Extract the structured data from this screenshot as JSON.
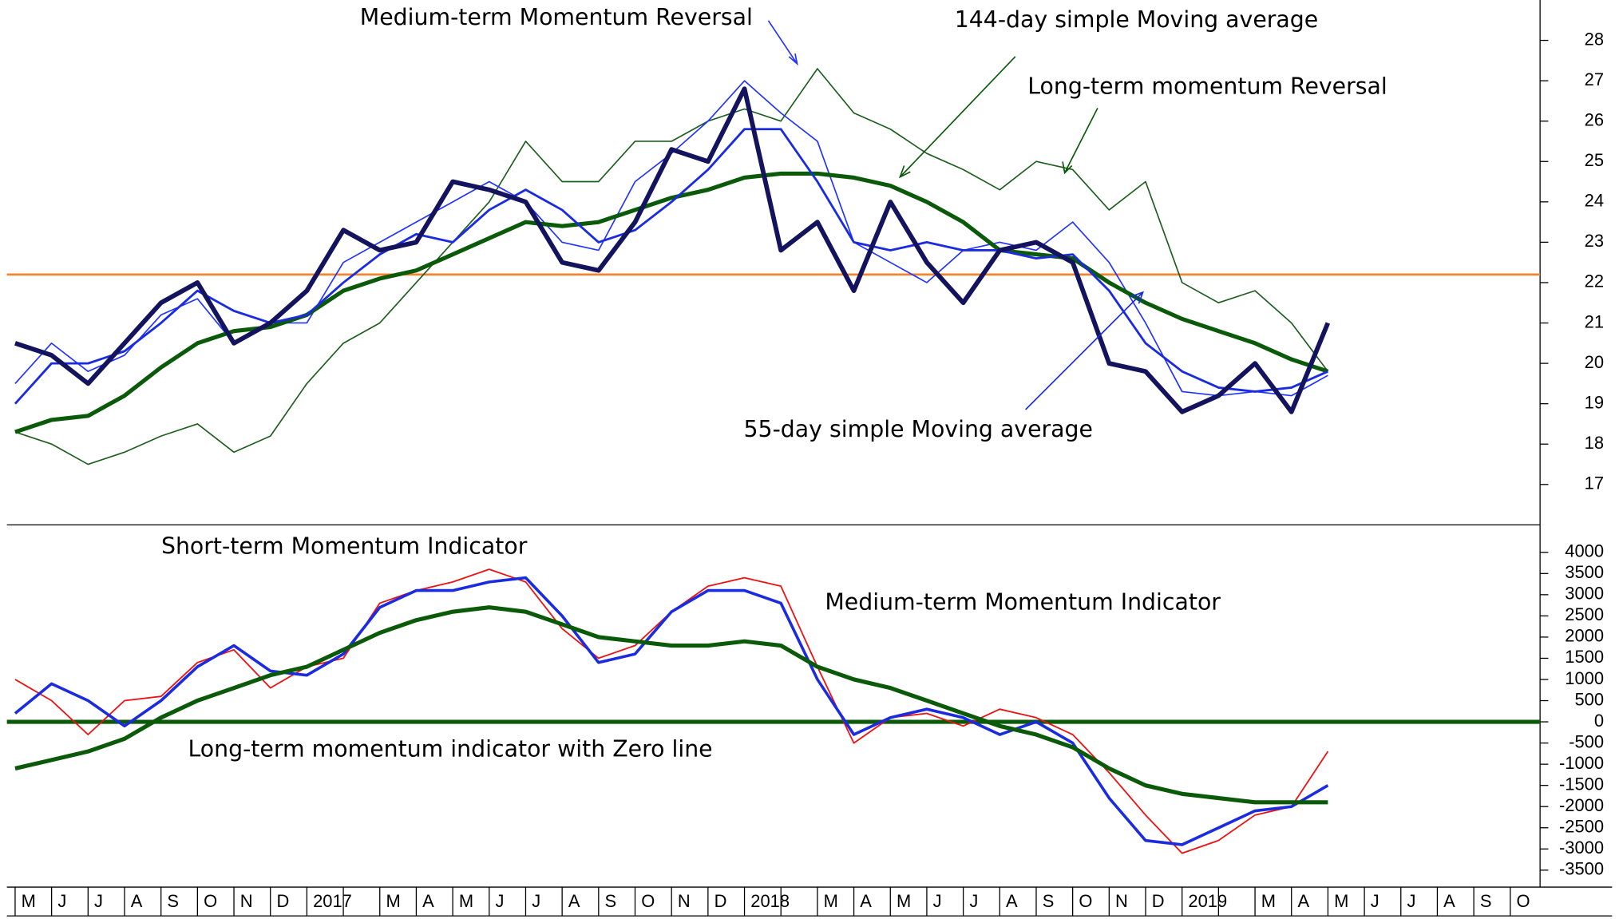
{
  "chart_data": [
    {
      "type": "line",
      "ylim": [
        16,
        29
      ],
      "yticks": [
        17,
        18,
        19,
        20,
        21,
        22,
        23,
        24,
        25,
        26,
        27,
        28
      ],
      "hline": 22.2,
      "hline_color": "#ff7f27",
      "series": [
        {
          "color": "#1e5e1e",
          "name": "Long-term momentum Reversal",
          "values": [
            18.3,
            18.0,
            17.5,
            17.8,
            18.2,
            18.5,
            17.8,
            18.2,
            19.5,
            20.5,
            21.0,
            22.0,
            23.0,
            24.0,
            25.5,
            24.5,
            24.5,
            25.5,
            25.5,
            26.0,
            26.3,
            26.0,
            27.3,
            26.2,
            25.8,
            25.2,
            24.8,
            24.3,
            25.0,
            24.8,
            23.8,
            24.5,
            22.0,
            21.5,
            21.8,
            21.0,
            19.8,
            null,
            null,
            null,
            null,
            null
          ]
        },
        {
          "color": "#2233ff",
          "name": "Medium-term Momentum Reversal",
          "values": [
            19.5,
            20.5,
            19.8,
            20.2,
            21.2,
            21.6,
            20.5,
            21.0,
            21.0,
            22.5,
            23.0,
            23.5,
            24.0,
            24.5,
            24.0,
            23.0,
            22.8,
            24.5,
            25.2,
            26.0,
            27.0,
            26.2,
            25.5,
            23.0,
            22.5,
            22.0,
            22.8,
            23.0,
            22.8,
            23.5,
            22.5,
            21.0,
            19.3,
            19.2,
            19.3,
            19.2,
            19.7,
            null,
            null,
            null,
            null,
            null
          ]
        },
        {
          "color": "#0a5a0a",
          "name": "144-day simple Moving average",
          "values": [
            18.3,
            18.6,
            18.7,
            19.2,
            19.9,
            20.5,
            20.8,
            20.9,
            21.2,
            21.8,
            22.1,
            22.3,
            22.7,
            23.1,
            23.5,
            23.4,
            23.5,
            23.8,
            24.1,
            24.3,
            24.6,
            24.7,
            24.7,
            24.6,
            24.4,
            24.0,
            23.5,
            22.8,
            22.7,
            22.6,
            22.0,
            21.5,
            21.1,
            20.8,
            20.5,
            20.1,
            19.8,
            null,
            null,
            null,
            null,
            null
          ]
        },
        {
          "color": "#1a2be0",
          "name": "55-day simple Moving average",
          "values": [
            19.0,
            20.0,
            20.0,
            20.3,
            21.0,
            21.8,
            21.3,
            21.0,
            21.2,
            22.0,
            22.7,
            23.2,
            23.0,
            23.8,
            24.3,
            23.8,
            23.0,
            23.3,
            24.0,
            24.8,
            25.8,
            25.8,
            24.5,
            23.0,
            22.8,
            23.0,
            22.8,
            22.8,
            22.6,
            22.7,
            21.8,
            20.5,
            19.8,
            19.4,
            19.3,
            19.4,
            19.8,
            null,
            null,
            null,
            null,
            null
          ]
        },
        {
          "color": "#13135e",
          "values": [
            20.5,
            20.2,
            19.5,
            20.5,
            21.5,
            22.0,
            20.5,
            21.0,
            21.8,
            23.3,
            22.8,
            23.0,
            24.5,
            24.3,
            24.0,
            22.5,
            22.3,
            23.5,
            25.3,
            25.0,
            26.8,
            22.8,
            23.5,
            21.8,
            24.0,
            22.5,
            21.5,
            22.8,
            23.0,
            22.5,
            20.0,
            19.8,
            18.8,
            19.2,
            20.0,
            18.8,
            21.0,
            null,
            null,
            null,
            null,
            null
          ]
        }
      ]
    },
    {
      "type": "line",
      "categories": [
        "M",
        "J",
        "J",
        "A",
        "S",
        "O",
        "N",
        "D",
        "2017",
        null,
        "M",
        "A",
        "M",
        "J",
        "J",
        "A",
        "S",
        "O",
        "N",
        "D",
        "2018",
        null,
        "M",
        "A",
        "M",
        "J",
        "J",
        "A",
        "S",
        "O",
        "N",
        "D",
        "2019",
        null,
        "M",
        "A",
        "M",
        "J",
        "J",
        "A",
        "S",
        "O"
      ],
      "ylim": [
        -3900,
        4600
      ],
      "yticks": [
        -3500,
        -3000,
        -2500,
        -2000,
        -1500,
        -1000,
        -500,
        0,
        500,
        1000,
        1500,
        2000,
        2500,
        3000,
        3500,
        4000
      ],
      "zero_line": true,
      "series": [
        {
          "color": "#ee1111",
          "name": "Short-term Momentum Indicator",
          "values": [
            1000,
            500,
            -300,
            500,
            600,
            1400,
            1700,
            800,
            1300,
            1500,
            2800,
            3100,
            3300,
            3600,
            3300,
            2200,
            1500,
            1800,
            2600,
            3200,
            3400,
            3200,
            1300,
            -500,
            100,
            200,
            -100,
            300,
            100,
            -300,
            -1200,
            -2200,
            -3100,
            -2800,
            -2200,
            -2000,
            -700,
            null,
            null,
            null,
            null,
            null
          ]
        },
        {
          "color": "#1a2be0",
          "name": "Medium-term Momentum Indicator",
          "values": [
            200,
            900,
            500,
            -100,
            500,
            1300,
            1800,
            1200,
            1100,
            1600,
            2700,
            3100,
            3100,
            3300,
            3400,
            2500,
            1400,
            1600,
            2600,
            3100,
            3100,
            2800,
            1000,
            -300,
            100,
            300,
            100,
            -300,
            0,
            -500,
            -1800,
            -2800,
            -2900,
            -2500,
            -2100,
            -2000,
            -1500,
            null,
            null,
            null,
            null,
            null
          ]
        },
        {
          "color": "#0a5a0a",
          "name": "Long-term momentum indicator with Zero line",
          "values": [
            -1100,
            -900,
            -700,
            -400,
            100,
            500,
            800,
            1100,
            1300,
            1700,
            2100,
            2400,
            2600,
            2700,
            2600,
            2300,
            2000,
            1900,
            1800,
            1800,
            1900,
            1800,
            1300,
            1000,
            800,
            500,
            200,
            -100,
            -300,
            -600,
            -1100,
            -1500,
            -1700,
            -1800,
            -1900,
            -1900,
            -1900,
            null,
            null,
            null,
            null,
            null
          ]
        }
      ]
    }
  ]
}
